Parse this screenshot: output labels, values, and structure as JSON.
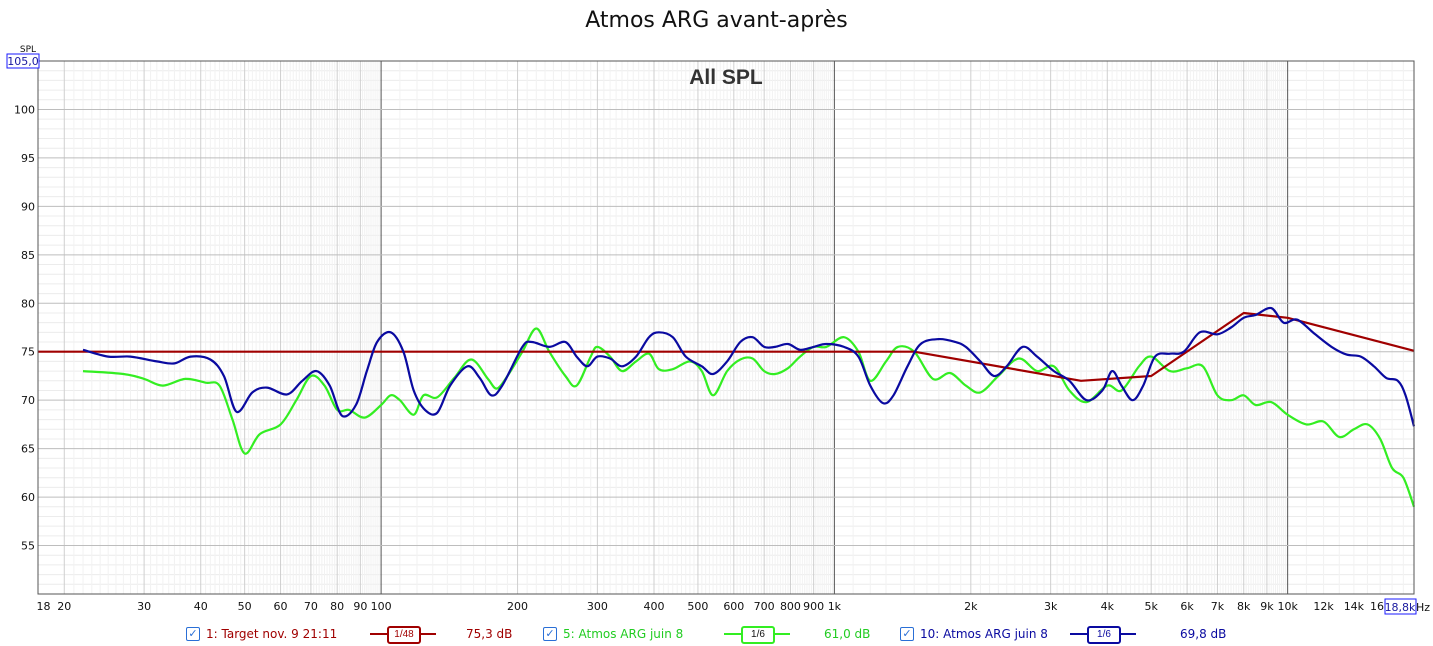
{
  "title": "Atmos ARG avant-après",
  "chart_data": {
    "type": "line",
    "title": "Atmos ARG avant-après",
    "annotation": "All SPL",
    "ylabel": "SPL",
    "xlabel": "Hz",
    "x_scale": "log",
    "xlim": [
      17.5,
      19000
    ],
    "ylim": [
      50,
      105
    ],
    "y_top_label": "105,0",
    "x_right_label": "18,8k",
    "y_ticks": [
      55,
      60,
      65,
      70,
      75,
      80,
      85,
      90,
      95,
      100
    ],
    "x_ticks": [
      {
        "v": 18,
        "label": "18"
      },
      {
        "v": 20,
        "label": "20"
      },
      {
        "v": 30,
        "label": "30"
      },
      {
        "v": 40,
        "label": "40"
      },
      {
        "v": 50,
        "label": "50"
      },
      {
        "v": 60,
        "label": "60"
      },
      {
        "v": 70,
        "label": "70"
      },
      {
        "v": 80,
        "label": "80"
      },
      {
        "v": 90,
        "label": "90"
      },
      {
        "v": 100,
        "label": "100"
      },
      {
        "v": 200,
        "label": "200"
      },
      {
        "v": 300,
        "label": "300"
      },
      {
        "v": 400,
        "label": "400"
      },
      {
        "v": 500,
        "label": "500"
      },
      {
        "v": 600,
        "label": "600"
      },
      {
        "v": 700,
        "label": "700"
      },
      {
        "v": 800,
        "label": "800"
      },
      {
        "v": 900,
        "label": "900"
      },
      {
        "v": 1000,
        "label": "1k"
      },
      {
        "v": 2000,
        "label": "2k"
      },
      {
        "v": 3000,
        "label": "3k"
      },
      {
        "v": 4000,
        "label": "4k"
      },
      {
        "v": 5000,
        "label": "5k"
      },
      {
        "v": 6000,
        "label": "6k"
      },
      {
        "v": 7000,
        "label": "7k"
      },
      {
        "v": 8000,
        "label": "8k"
      },
      {
        "v": 9000,
        "label": "9k"
      },
      {
        "v": 10000,
        "label": "10k"
      },
      {
        "v": 12000,
        "label": "12k"
      },
      {
        "v": 14000,
        "label": "14k"
      },
      {
        "v": 16000,
        "label": "16k"
      }
    ],
    "grid": true,
    "series": [
      {
        "name": "1: Target nov. 9 21:11",
        "color": "#a00000",
        "smoothing": "1/48",
        "level": "75,3 dB",
        "points": [
          [
            17.5,
            75
          ],
          [
            1500,
            75
          ],
          [
            3500,
            72
          ],
          [
            5000,
            72.5
          ],
          [
            8000,
            79
          ],
          [
            10000,
            78.5
          ],
          [
            19000,
            75.1
          ]
        ]
      },
      {
        "name": "5: Atmos ARG juin 8",
        "color": "#33ee22",
        "smoothing": "1/6",
        "level": "61,0 dB",
        "points": [
          [
            22,
            73
          ],
          [
            27,
            72.7
          ],
          [
            30,
            72.2
          ],
          [
            33,
            71.5
          ],
          [
            37,
            72.2
          ],
          [
            41,
            71.8
          ],
          [
            44,
            71.5
          ],
          [
            47,
            68
          ],
          [
            50,
            64.5
          ],
          [
            54,
            66.5
          ],
          [
            60,
            67.5
          ],
          [
            65,
            70
          ],
          [
            70,
            72.5
          ],
          [
            75,
            71.5
          ],
          [
            80,
            69
          ],
          [
            85,
            69
          ],
          [
            92,
            68.2
          ],
          [
            100,
            69.5
          ],
          [
            105,
            70.5
          ],
          [
            110,
            70
          ],
          [
            118,
            68.5
          ],
          [
            124,
            70.5
          ],
          [
            133,
            70.3
          ],
          [
            145,
            72.3
          ],
          [
            158,
            74.2
          ],
          [
            172,
            72.2
          ],
          [
            180,
            71.2
          ],
          [
            190,
            72.5
          ],
          [
            205,
            75
          ],
          [
            220,
            77.4
          ],
          [
            235,
            75
          ],
          [
            255,
            72.5
          ],
          [
            270,
            71.5
          ],
          [
            290,
            74.5
          ],
          [
            300,
            75.5
          ],
          [
            320,
            74.5
          ],
          [
            340,
            73
          ],
          [
            365,
            74
          ],
          [
            390,
            74.8
          ],
          [
            410,
            73.2
          ],
          [
            440,
            73.2
          ],
          [
            480,
            74
          ],
          [
            510,
            73
          ],
          [
            540,
            70.5
          ],
          [
            580,
            73
          ],
          [
            620,
            74.2
          ],
          [
            660,
            74.3
          ],
          [
            700,
            73
          ],
          [
            740,
            72.7
          ],
          [
            790,
            73.3
          ],
          [
            840,
            74.5
          ],
          [
            900,
            75.5
          ],
          [
            960,
            75.5
          ],
          [
            1050,
            76.5
          ],
          [
            1130,
            75
          ],
          [
            1200,
            72
          ],
          [
            1300,
            74
          ],
          [
            1380,
            75.5
          ],
          [
            1500,
            75
          ],
          [
            1650,
            72.2
          ],
          [
            1800,
            72.8
          ],
          [
            1950,
            71.5
          ],
          [
            2100,
            70.8
          ],
          [
            2300,
            72.5
          ],
          [
            2550,
            74.3
          ],
          [
            2800,
            73
          ],
          [
            3050,
            73.5
          ],
          [
            3300,
            71
          ],
          [
            3600,
            69.8
          ],
          [
            4000,
            71.5
          ],
          [
            4300,
            71
          ],
          [
            4700,
            73.5
          ],
          [
            5000,
            74.5
          ],
          [
            5500,
            73
          ],
          [
            6000,
            73.3
          ],
          [
            6500,
            73.5
          ],
          [
            7000,
            70.5
          ],
          [
            7500,
            70
          ],
          [
            8000,
            70.5
          ],
          [
            8500,
            69.5
          ],
          [
            9200,
            69.8
          ],
          [
            10000,
            68.5
          ],
          [
            11000,
            67.5
          ],
          [
            12000,
            67.8
          ],
          [
            13000,
            66.2
          ],
          [
            14000,
            67
          ],
          [
            15000,
            67.5
          ],
          [
            16000,
            66
          ],
          [
            17000,
            63
          ],
          [
            18000,
            62
          ],
          [
            19000,
            59
          ]
        ]
      },
      {
        "name": "10: Atmos ARG juin 8",
        "color": "#0a0aa0",
        "smoothing": "1/6",
        "level": "69,8 dB",
        "points": [
          [
            22,
            75.2
          ],
          [
            25,
            74.5
          ],
          [
            28,
            74.5
          ],
          [
            32,
            74
          ],
          [
            35,
            73.8
          ],
          [
            38,
            74.5
          ],
          [
            42,
            74.2
          ],
          [
            45,
            72.5
          ],
          [
            48,
            68.8
          ],
          [
            52,
            70.8
          ],
          [
            56,
            71.3
          ],
          [
            62,
            70.6
          ],
          [
            67,
            72
          ],
          [
            72,
            73
          ],
          [
            77,
            71.5
          ],
          [
            82,
            68.4
          ],
          [
            88,
            69.5
          ],
          [
            93,
            73
          ],
          [
            98,
            76
          ],
          [
            105,
            77
          ],
          [
            112,
            75
          ],
          [
            118,
            71
          ],
          [
            125,
            69
          ],
          [
            133,
            68.7
          ],
          [
            142,
            71.5
          ],
          [
            155,
            73.5
          ],
          [
            165,
            72.3
          ],
          [
            175,
            70.5
          ],
          [
            185,
            71.5
          ],
          [
            205,
            75.5
          ],
          [
            215,
            76
          ],
          [
            235,
            75.5
          ],
          [
            255,
            76
          ],
          [
            270,
            74.5
          ],
          [
            285,
            73.5
          ],
          [
            300,
            74.5
          ],
          [
            320,
            74.3
          ],
          [
            340,
            73.5
          ],
          [
            365,
            74.5
          ],
          [
            390,
            76.5
          ],
          [
            410,
            77
          ],
          [
            440,
            76.5
          ],
          [
            470,
            74.5
          ],
          [
            510,
            73.5
          ],
          [
            540,
            72.7
          ],
          [
            580,
            74
          ],
          [
            620,
            76
          ],
          [
            660,
            76.5
          ],
          [
            700,
            75.5
          ],
          [
            740,
            75.5
          ],
          [
            790,
            75.8
          ],
          [
            840,
            75.2
          ],
          [
            900,
            75.5
          ],
          [
            960,
            75.8
          ],
          [
            1050,
            75.5
          ],
          [
            1130,
            74.5
          ],
          [
            1200,
            71.5
          ],
          [
            1280,
            69.7
          ],
          [
            1350,
            70.5
          ],
          [
            1450,
            73.5
          ],
          [
            1550,
            75.8
          ],
          [
            1700,
            76.3
          ],
          [
            1850,
            76
          ],
          [
            1950,
            75.5
          ],
          [
            2100,
            74
          ],
          [
            2250,
            72.5
          ],
          [
            2400,
            73.5
          ],
          [
            2600,
            75.5
          ],
          [
            2800,
            74.5
          ],
          [
            3050,
            73
          ],
          [
            3300,
            72
          ],
          [
            3600,
            70
          ],
          [
            3900,
            71
          ],
          [
            4100,
            73
          ],
          [
            4300,
            71.5
          ],
          [
            4550,
            70
          ],
          [
            4800,
            71.5
          ],
          [
            5100,
            74.5
          ],
          [
            5500,
            74.8
          ],
          [
            5900,
            75
          ],
          [
            6400,
            77
          ],
          [
            7000,
            76.8
          ],
          [
            7500,
            77.5
          ],
          [
            8000,
            78.5
          ],
          [
            8500,
            78.8
          ],
          [
            9200,
            79.5
          ],
          [
            9800,
            78
          ],
          [
            10500,
            78.3
          ],
          [
            11500,
            76.8
          ],
          [
            12500,
            75.5
          ],
          [
            13500,
            74.7
          ],
          [
            14500,
            74.5
          ],
          [
            15500,
            73.5
          ],
          [
            16500,
            72.3
          ],
          [
            17500,
            72
          ],
          [
            18200,
            70.5
          ],
          [
            19000,
            67.3
          ]
        ]
      }
    ]
  }
}
